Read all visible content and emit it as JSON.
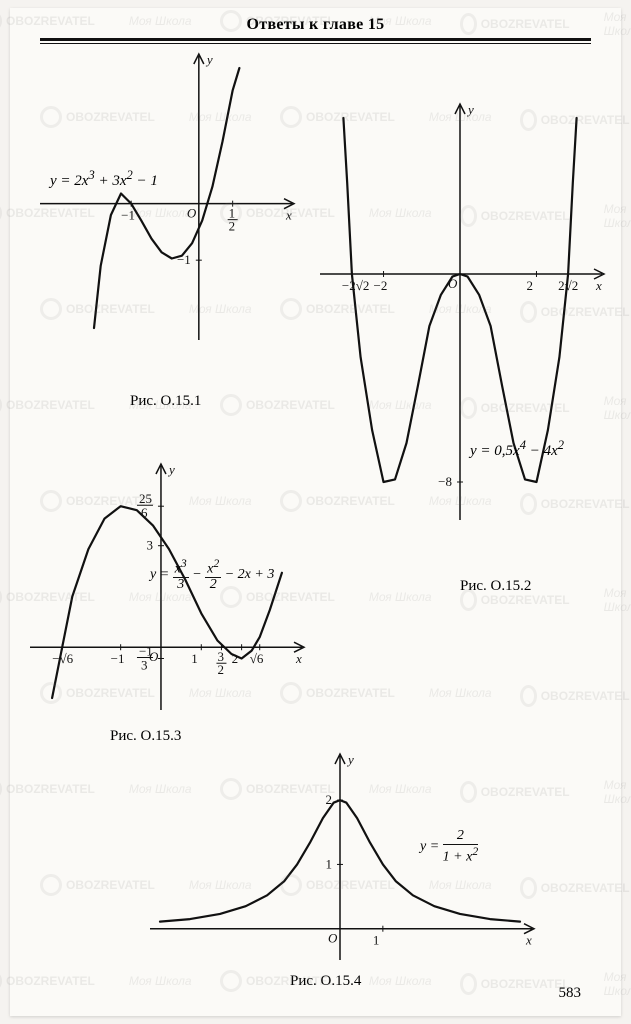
{
  "page": {
    "title": "Ответы к главе 15",
    "page_number": "583",
    "background": "#fbfaf7",
    "ink": "#111111"
  },
  "watermark": {
    "text1": "OBOZREVATEL",
    "text2": "Моя Школа"
  },
  "charts": {
    "c1": {
      "type": "line",
      "caption": "Рис. O.15.1",
      "formula": "y = 2x³ + 3x² − 1",
      "x_axis_label": "x",
      "y_axis_label": "y",
      "origin_label": "O",
      "x_ticks": [
        {
          "v": -1,
          "label": "−1"
        },
        {
          "v": 0.5,
          "label": "1/2"
        }
      ],
      "y_ticks": [
        {
          "v": -1,
          "label": "−1"
        }
      ],
      "xlim": [
        -2.2,
        1.2
      ],
      "ylim": [
        -2.2,
        2.4
      ],
      "stroke": "#111111",
      "axis_stroke": "#111111",
      "line_width": 2.2,
      "points": [
        [
          -1.55,
          -2.2
        ],
        [
          -1.45,
          -1.1
        ],
        [
          -1.3,
          -0.2
        ],
        [
          -1.15,
          0.18
        ],
        [
          -1.0,
          0.0
        ],
        [
          -0.85,
          -0.3
        ],
        [
          -0.7,
          -0.62
        ],
        [
          -0.55,
          -0.86
        ],
        [
          -0.4,
          -0.97
        ],
        [
          -0.25,
          -0.92
        ],
        [
          -0.1,
          -0.7
        ],
        [
          0.05,
          -0.3
        ],
        [
          0.2,
          0.3
        ],
        [
          0.35,
          1.1
        ],
        [
          0.5,
          2.0
        ],
        [
          0.6,
          2.4
        ]
      ]
    },
    "c2": {
      "type": "line",
      "caption": "Рис. O.15.2",
      "formula": "y = 0,5x⁴ − 4x²",
      "x_axis_label": "x",
      "y_axis_label": "y",
      "origin_label": "O",
      "x_ticks": [
        {
          "v": -2.828,
          "label": "−2√2"
        },
        {
          "v": -2,
          "label": "−2"
        },
        {
          "v": 2,
          "label": "2"
        },
        {
          "v": 2.828,
          "label": "2√2"
        }
      ],
      "y_ticks": [
        {
          "v": -8,
          "label": "−8"
        }
      ],
      "xlim": [
        -3.4,
        3.4
      ],
      "ylim": [
        -9,
        6
      ],
      "stroke": "#111111",
      "axis_stroke": "#111111",
      "line_width": 2.2,
      "points": [
        [
          -3.05,
          6
        ],
        [
          -2.95,
          3.5
        ],
        [
          -2.828,
          0
        ],
        [
          -2.6,
          -3.2
        ],
        [
          -2.3,
          -6.0
        ],
        [
          -2.0,
          -8.0
        ],
        [
          -1.7,
          -7.9
        ],
        [
          -1.4,
          -6.5
        ],
        [
          -1.1,
          -4.3
        ],
        [
          -0.8,
          -2.0
        ],
        [
          -0.5,
          -0.8
        ],
        [
          -0.2,
          -0.1
        ],
        [
          0,
          0
        ],
        [
          0.2,
          -0.1
        ],
        [
          0.5,
          -0.8
        ],
        [
          0.8,
          -2.0
        ],
        [
          1.1,
          -4.3
        ],
        [
          1.4,
          -6.5
        ],
        [
          1.7,
          -7.9
        ],
        [
          2.0,
          -8.0
        ],
        [
          2.3,
          -6.0
        ],
        [
          2.6,
          -3.2
        ],
        [
          2.828,
          0
        ],
        [
          2.95,
          3.5
        ],
        [
          3.05,
          6
        ]
      ]
    },
    "c3": {
      "type": "line",
      "caption": "Рис. O.15.3",
      "formula_html": "y = x³/3 − x²/2 − 2x + 3",
      "x_axis_label": "x",
      "y_axis_label": "y",
      "origin_label": "O",
      "x_ticks": [
        {
          "v": -2.449,
          "label": "−√6"
        },
        {
          "v": -1,
          "label": "−1"
        },
        {
          "v": 1,
          "label": "1"
        },
        {
          "v": 1.5,
          "label": "3/2"
        },
        {
          "v": 2,
          "label": "2"
        },
        {
          "v": 2.449,
          "label": "√6"
        }
      ],
      "y_ticks": [
        {
          "v": 4.1667,
          "label": "25/6"
        },
        {
          "v": 3,
          "label": "3"
        },
        {
          "v": -0.333,
          "label": "−1/3"
        }
      ],
      "xlim": [
        -3.0,
        3.2
      ],
      "ylim": [
        -1.5,
        5.0
      ],
      "stroke": "#111111",
      "axis_stroke": "#111111",
      "line_width": 2.2,
      "points": [
        [
          -2.7,
          -1.5
        ],
        [
          -2.449,
          0
        ],
        [
          -2.2,
          1.5
        ],
        [
          -1.8,
          2.9
        ],
        [
          -1.4,
          3.8
        ],
        [
          -1.0,
          4.1667
        ],
        [
          -0.6,
          4.05
        ],
        [
          -0.2,
          3.6
        ],
        [
          0.2,
          2.9
        ],
        [
          0.6,
          2.0
        ],
        [
          1.0,
          1.0
        ],
        [
          1.4,
          0.2
        ],
        [
          1.75,
          -0.2
        ],
        [
          2.0,
          -0.333
        ],
        [
          2.25,
          -0.1
        ],
        [
          2.449,
          0.3
        ],
        [
          2.7,
          1.1
        ],
        [
          3.0,
          2.2
        ]
      ]
    },
    "c4": {
      "type": "line",
      "caption": "Рис. O.15.4",
      "formula_html": "y = 2 / (1 + x²)",
      "x_axis_label": "x",
      "y_axis_label": "y",
      "origin_label": "O",
      "x_ticks": [
        {
          "v": 1,
          "label": "1"
        }
      ],
      "y_ticks": [
        {
          "v": 1,
          "label": "1"
        },
        {
          "v": 2,
          "label": "2"
        }
      ],
      "xlim": [
        -4.2,
        4.2
      ],
      "ylim": [
        -0.3,
        2.5
      ],
      "stroke": "#111111",
      "axis_stroke": "#111111",
      "line_width": 2.2,
      "points": [
        [
          -4.2,
          0.11
        ],
        [
          -3.5,
          0.15
        ],
        [
          -2.8,
          0.23
        ],
        [
          -2.2,
          0.35
        ],
        [
          -1.7,
          0.52
        ],
        [
          -1.3,
          0.74
        ],
        [
          -1.0,
          1.0
        ],
        [
          -0.7,
          1.34
        ],
        [
          -0.4,
          1.72
        ],
        [
          -0.15,
          1.96
        ],
        [
          0,
          2.0
        ],
        [
          0.15,
          1.96
        ],
        [
          0.4,
          1.72
        ],
        [
          0.7,
          1.34
        ],
        [
          1.0,
          1.0
        ],
        [
          1.3,
          0.74
        ],
        [
          1.7,
          0.52
        ],
        [
          2.2,
          0.35
        ],
        [
          2.8,
          0.23
        ],
        [
          3.5,
          0.15
        ],
        [
          4.2,
          0.11
        ]
      ]
    }
  }
}
